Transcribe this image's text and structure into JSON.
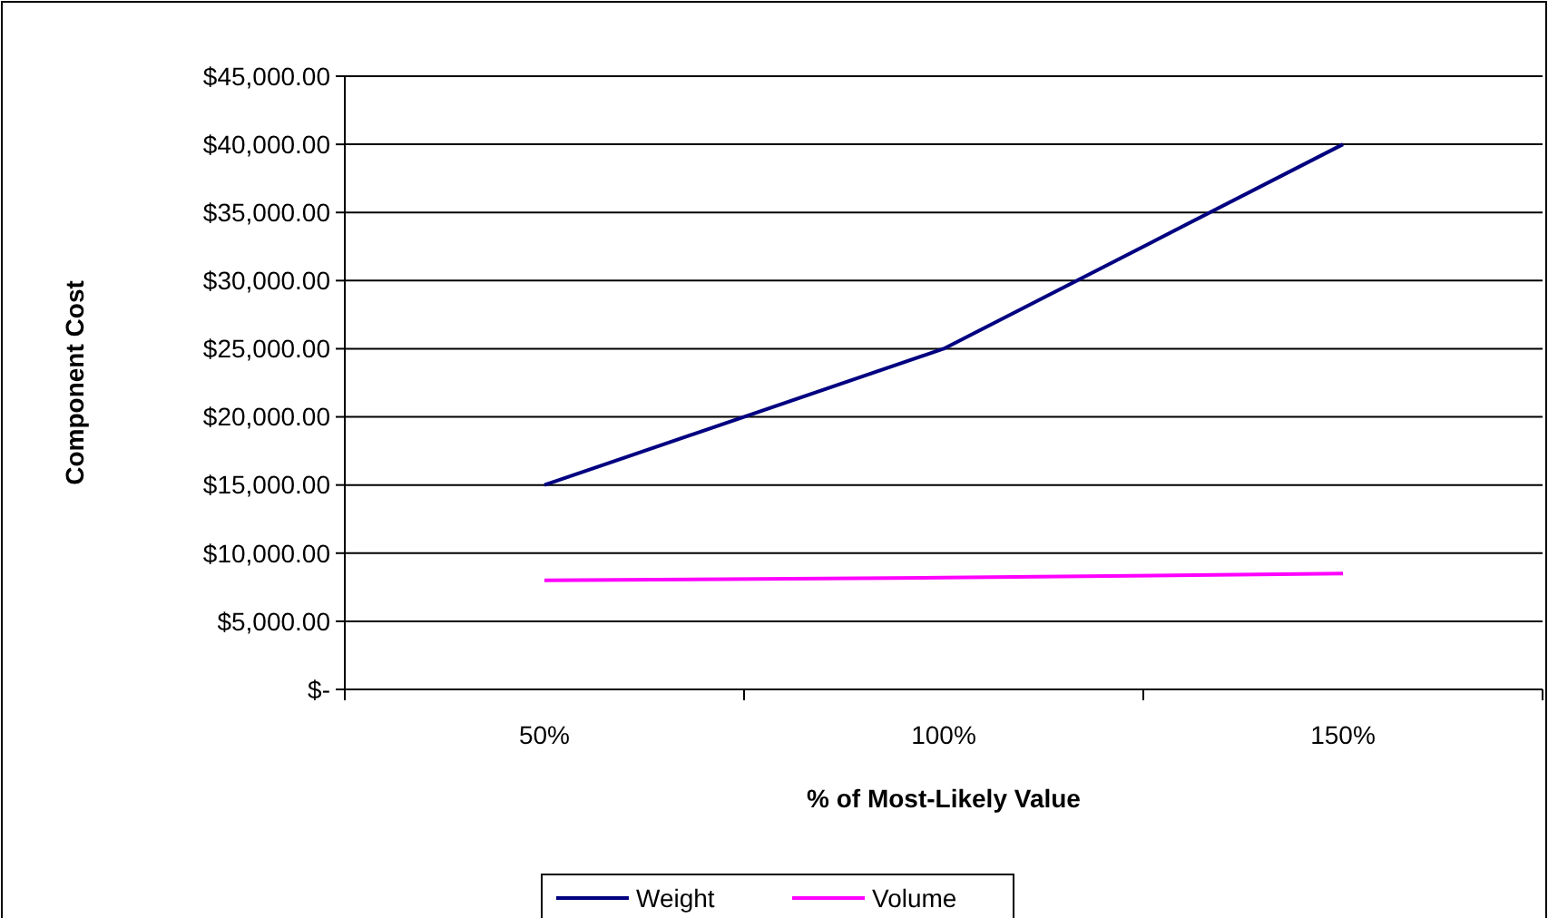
{
  "chart_data": {
    "type": "line",
    "xlabel": "% of Most-Likely Value",
    "ylabel": "Component Cost",
    "categories": [
      "50%",
      "100%",
      "150%"
    ],
    "series": [
      {
        "name": "Weight",
        "color": "#000080",
        "values": [
          15000,
          25000,
          40000
        ]
      },
      {
        "name": "Volume",
        "color": "#ff00ff",
        "values": [
          8000,
          8200,
          8500
        ]
      }
    ],
    "ylim": [
      0,
      45000
    ],
    "yticks": [
      {
        "value": 0,
        "label": "$-"
      },
      {
        "value": 5000,
        "label": "$5,000.00"
      },
      {
        "value": 10000,
        "label": "$10,000.00"
      },
      {
        "value": 15000,
        "label": "$15,000.00"
      },
      {
        "value": 20000,
        "label": "$20,000.00"
      },
      {
        "value": 25000,
        "label": "$25,000.00"
      },
      {
        "value": 30000,
        "label": "$30,000.00"
      },
      {
        "value": 35000,
        "label": "$35,000.00"
      },
      {
        "value": 40000,
        "label": "$40,000.00"
      },
      {
        "value": 45000,
        "label": "$45,000.00"
      }
    ],
    "grid": "y",
    "legend": "bottom",
    "marker": "none",
    "line_style": "solid"
  }
}
